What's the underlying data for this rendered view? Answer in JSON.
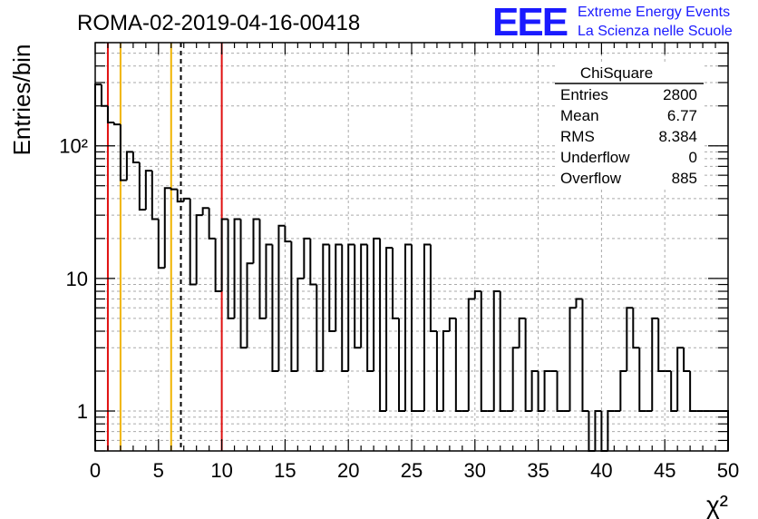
{
  "title": "ROMA-02-2019-04-16-00418",
  "logo": {
    "letters": "EEE",
    "line1": "Extreme Energy Events",
    "line2": "La Scienza nelle Scuole",
    "color": "#1a1aff"
  },
  "stats_box": {
    "title": "ChiSquare",
    "rows": [
      {
        "label": "Entries",
        "value": "2800"
      },
      {
        "label": "Mean",
        "value": "6.77"
      },
      {
        "label": "RMS",
        "value": "8.384"
      },
      {
        "label": "Underflow",
        "value": "0"
      },
      {
        "label": "Overflow",
        "value": "885"
      }
    ]
  },
  "chart_data": {
    "type": "histogram",
    "title": "ROMA-02-2019-04-16-00418",
    "xlabel": "χ²",
    "ylabel": "Entries/bin",
    "xlim": [
      0,
      50
    ],
    "ylim": [
      0.5,
      600
    ],
    "yscale": "log",
    "grid": true,
    "bin_width": 0.5,
    "x_ticks": [
      0,
      5,
      10,
      15,
      20,
      25,
      30,
      35,
      40,
      45,
      50
    ],
    "y_ticks": [
      {
        "value": 1,
        "label": "1"
      },
      {
        "value": 10,
        "label": "10"
      },
      {
        "value": 100,
        "label": "10²"
      }
    ],
    "bin_values": [
      290,
      200,
      150,
      145,
      55,
      90,
      75,
      33,
      65,
      28,
      12,
      48,
      47,
      38,
      40,
      9,
      30,
      34,
      20,
      8,
      28,
      5,
      28,
      3,
      13,
      28,
      5,
      18,
      2,
      25,
      19,
      2,
      10,
      20,
      9,
      2,
      18,
      4,
      18,
      2,
      18,
      3,
      18,
      2,
      20,
      1,
      17,
      5,
      1,
      18,
      1,
      1,
      18,
      4,
      1,
      4,
      5,
      1,
      1,
      7,
      8,
      1,
      1,
      8,
      1,
      1,
      3,
      5,
      1,
      2,
      1,
      2,
      2,
      1,
      1,
      6,
      7,
      1,
      0,
      1,
      0,
      1,
      1,
      2,
      6,
      3,
      1,
      1,
      5,
      2,
      2,
      1,
      3,
      2,
      1,
      1,
      1,
      1,
      1,
      1
    ],
    "vertical_lines": [
      {
        "x": 1,
        "color": "#e01010",
        "style": "solid"
      },
      {
        "x": 2,
        "color": "#f0b400",
        "style": "solid"
      },
      {
        "x": 6,
        "color": "#f0b400",
        "style": "solid"
      },
      {
        "x": 6.77,
        "color": "#000000",
        "style": "dashed"
      },
      {
        "x": 10,
        "color": "#e01010",
        "style": "solid"
      }
    ]
  }
}
